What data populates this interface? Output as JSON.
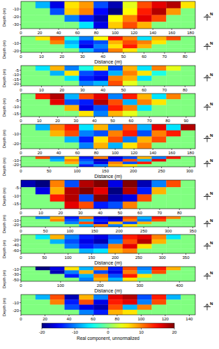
{
  "chart_data": [
    {
      "type": "heatmap",
      "ylabel": "Depth (m)",
      "north": "N",
      "xlim": [
        0,
        185
      ],
      "ylim": [
        0,
        -35
      ],
      "xticks": [
        0,
        20,
        40,
        60,
        80,
        100,
        120,
        140,
        160,
        180
      ],
      "yticks": [
        -10,
        -20,
        -30
      ],
      "z": [
        [
          0,
          -8,
          -16,
          6,
          9,
          -12,
          -18,
          4,
          12,
          16,
          18,
          6
        ],
        [
          0,
          0,
          -12,
          7,
          10,
          -15,
          -20,
          5,
          14,
          18,
          9,
          0
        ],
        [
          0,
          0,
          0,
          -10,
          -14,
          -18,
          5,
          10,
          16,
          12,
          0,
          0
        ],
        [
          0,
          0,
          0,
          0,
          -6,
          -16,
          7,
          12,
          8,
          0,
          0,
          0
        ]
      ]
    },
    {
      "type": "heatmap",
      "xlabel": "Distance (m)",
      "ylabel": "Depth (m)",
      "north": "N",
      "xlim": [
        0,
        85
      ],
      "ylim": [
        0,
        -22
      ],
      "xticks": [
        0,
        10,
        20,
        30,
        40,
        50,
        60,
        70,
        80
      ],
      "yticks": [
        -10,
        -20
      ],
      "z": [
        [
          0,
          6,
          12,
          -4,
          -10,
          5,
          14,
          10,
          -6,
          8,
          12,
          0
        ],
        [
          0,
          0,
          10,
          -8,
          -14,
          -12,
          8,
          12,
          10,
          6,
          0,
          0
        ],
        [
          0,
          0,
          0,
          -6,
          -16,
          -10,
          6,
          14,
          8,
          0,
          0,
          0
        ],
        [
          0,
          0,
          0,
          0,
          -8,
          -12,
          10,
          6,
          0,
          0,
          0,
          0
        ]
      ]
    },
    {
      "type": "heatmap",
      "ylabel": "Depth (m)",
      "north": "N",
      "xlim": [
        0,
        85
      ],
      "ylim": [
        0,
        -22
      ],
      "xticks": [
        0,
        10,
        20,
        30,
        40,
        50,
        60,
        70,
        80
      ],
      "yticks": [
        -5,
        -10,
        -15,
        -20
      ],
      "z": [
        [
          0,
          -6,
          8,
          -10,
          -4,
          6,
          -12,
          8,
          -6,
          10,
          4,
          0
        ],
        [
          0,
          0,
          -8,
          6,
          -12,
          -14,
          -8,
          10,
          6,
          -4,
          0,
          0
        ],
        [
          0,
          0,
          0,
          -6,
          -14,
          -16,
          10,
          8,
          -6,
          0,
          0,
          0
        ],
        [
          0,
          0,
          0,
          0,
          -10,
          -8,
          12,
          4,
          0,
          0,
          0,
          0
        ]
      ]
    },
    {
      "type": "heatmap",
      "ylabel": "Depth (m)",
      "north": "N",
      "xlim": [
        0,
        95
      ],
      "ylim": [
        0,
        -17
      ],
      "xticks": [
        0,
        10,
        20,
        30,
        40,
        50,
        60,
        70,
        80,
        90
      ],
      "yticks": [
        -5,
        -10,
        -15
      ],
      "z": [
        [
          0,
          14,
          18,
          -8,
          12,
          16,
          -10,
          14,
          8,
          -6,
          10,
          0
        ],
        [
          0,
          0,
          16,
          -12,
          -14,
          18,
          12,
          -8,
          10,
          6,
          0,
          0
        ],
        [
          0,
          0,
          0,
          8,
          -16,
          -12,
          14,
          10,
          -6,
          0,
          0,
          0
        ],
        [
          0,
          0,
          0,
          0,
          6,
          -10,
          8,
          4,
          0,
          0,
          0,
          0
        ]
      ]
    },
    {
      "type": "heatmap",
      "ylabel": "Depth (m)",
      "north": "N",
      "xlim": [
        0,
        185
      ],
      "ylim": [
        0,
        -25
      ],
      "xticks": [
        0,
        20,
        40,
        60,
        80,
        100,
        120,
        140,
        160,
        180
      ],
      "yticks": [
        -10,
        -20
      ],
      "z": [
        [
          0,
          -8,
          10,
          14,
          -6,
          8,
          -10,
          12,
          -8,
          16,
          -6,
          18
        ],
        [
          0,
          0,
          8,
          12,
          -10,
          -12,
          10,
          14,
          -12,
          10,
          14,
          0
        ],
        [
          0,
          0,
          0,
          -8,
          -14,
          6,
          12,
          -10,
          8,
          12,
          0,
          0
        ],
        [
          0,
          0,
          0,
          0,
          -10,
          8,
          -8,
          6,
          10,
          0,
          0,
          0
        ]
      ]
    },
    {
      "type": "heatmap",
      "xlabel": "Distance (m)",
      "ylabel": "Depth (m)",
      "north": "N",
      "xlim": [
        0,
        310
      ],
      "ylim": [
        0,
        -25
      ],
      "xticks": [
        0,
        50,
        100,
        150,
        200,
        250,
        300
      ],
      "yticks": [
        -10,
        -20
      ],
      "z": [
        [
          0,
          12,
          -10,
          6,
          -14,
          10,
          -16,
          -12,
          8,
          -10,
          14,
          0
        ],
        [
          0,
          0,
          -8,
          10,
          -12,
          -18,
          -14,
          12,
          -8,
          16,
          0,
          0
        ],
        [
          0,
          0,
          0,
          8,
          -10,
          -16,
          10,
          -12,
          14,
          0,
          0,
          0
        ],
        [
          0,
          0,
          0,
          0,
          -14,
          -10,
          8,
          6,
          0,
          0,
          0,
          0
        ]
      ]
    },
    {
      "type": "heatmap",
      "ylabel": "Depth (m)",
      "north": "N",
      "xlim": [
        0,
        88
      ],
      "ylim": [
        0,
        -18
      ],
      "xticks": [
        0,
        10,
        20,
        30,
        40,
        50,
        60,
        70,
        80
      ],
      "yticks": [
        -5,
        -10,
        -15
      ],
      "z": [
        [
          -18,
          -20,
          10,
          -12,
          18,
          20,
          -16,
          20,
          -18,
          -10,
          12,
          0
        ],
        [
          0,
          -16,
          8,
          18,
          20,
          16,
          -20,
          18,
          -14,
          8,
          0,
          0
        ],
        [
          0,
          0,
          14,
          18,
          -12,
          20,
          -18,
          -16,
          12,
          0,
          0,
          0
        ],
        [
          0,
          0,
          0,
          16,
          12,
          -14,
          -12,
          10,
          0,
          0,
          0,
          0
        ]
      ]
    },
    {
      "type": "heatmap",
      "ylabel": "Depth (m)",
      "north": "N",
      "xlim": [
        0,
        355
      ],
      "ylim": [
        0,
        -25
      ],
      "xticks": [
        0,
        50,
        100,
        150,
        200,
        250,
        300,
        350
      ],
      "yticks": [
        -10,
        -20
      ],
      "z": [
        [
          0,
          -10,
          8,
          -14,
          10,
          -16,
          -18,
          12,
          -8,
          14,
          10,
          0
        ],
        [
          0,
          0,
          10,
          -12,
          -8,
          -14,
          -16,
          10,
          -10,
          12,
          0,
          0
        ],
        [
          0,
          0,
          0,
          -10,
          12,
          -16,
          8,
          -12,
          8,
          0,
          0,
          0
        ],
        [
          0,
          0,
          0,
          0,
          -8,
          10,
          -10,
          6,
          0,
          0,
          0,
          0
        ]
      ]
    },
    {
      "type": "heatmap",
      "xlabel": "Distance (m)",
      "ylabel": "Depth (m)",
      "north": "N",
      "xlim": [
        0,
        370
      ],
      "ylim": [
        0,
        -70
      ],
      "xticks": [
        0,
        50,
        100,
        150,
        200,
        250,
        300,
        350
      ],
      "yticks": [
        -20,
        -40,
        -60
      ],
      "z": [
        [
          0,
          -6,
          8,
          -10,
          -14,
          -16,
          -12,
          14,
          16,
          10,
          -6,
          0
        ],
        [
          0,
          0,
          -8,
          -12,
          -16,
          -18,
          -10,
          12,
          18,
          8,
          0,
          0
        ],
        [
          0,
          0,
          0,
          -10,
          -14,
          -12,
          10,
          16,
          6,
          0,
          0,
          0
        ],
        [
          0,
          0,
          0,
          0,
          -8,
          -6,
          8,
          10,
          0,
          0,
          0,
          0
        ]
      ]
    },
    {
      "type": "heatmap",
      "xlabel": "Distance (m)",
      "ylabel": "Depth (m)",
      "north": "N",
      "xlim": [
        0,
        440
      ],
      "ylim": [
        0,
        -55
      ],
      "xticks": [
        0,
        100,
        200,
        300,
        400
      ],
      "yticks": [
        -10,
        -30,
        -50
      ],
      "z": [
        [
          0,
          -20,
          -16,
          6,
          -8,
          10,
          -14,
          12,
          -10,
          14,
          8,
          0
        ],
        [
          0,
          0,
          -18,
          -10,
          8,
          -12,
          -16,
          10,
          -8,
          12,
          0,
          0
        ],
        [
          0,
          0,
          0,
          -14,
          -8,
          10,
          -12,
          14,
          6,
          0,
          0,
          0
        ],
        [
          0,
          0,
          0,
          0,
          -10,
          8,
          -8,
          6,
          0,
          0,
          0,
          0
        ]
      ]
    },
    {
      "type": "heatmap",
      "ylabel": "Depth (m)",
      "north": "N",
      "xlim": [
        0,
        145
      ],
      "ylim": [
        0,
        -25
      ],
      "xticks": [
        0,
        20,
        40,
        60,
        80,
        100,
        120,
        140
      ],
      "yticks": [
        -10,
        -20
      ],
      "z": [
        [
          0,
          -8,
          12,
          -18,
          8,
          -10,
          16,
          18,
          -12,
          14,
          -8,
          0
        ],
        [
          0,
          0,
          10,
          -14,
          12,
          -16,
          14,
          16,
          -10,
          12,
          0,
          0
        ],
        [
          0,
          0,
          0,
          -12,
          -16,
          -18,
          12,
          -8,
          10,
          0,
          0,
          0
        ],
        [
          0,
          0,
          0,
          0,
          -10,
          -14,
          8,
          6,
          0,
          0,
          0,
          0
        ]
      ]
    }
  ],
  "colorbar": {
    "label": "Real component, unnormalized",
    "range": [
      -20,
      20
    ],
    "ticks": [
      -20,
      -10,
      0,
      10,
      20
    ]
  }
}
